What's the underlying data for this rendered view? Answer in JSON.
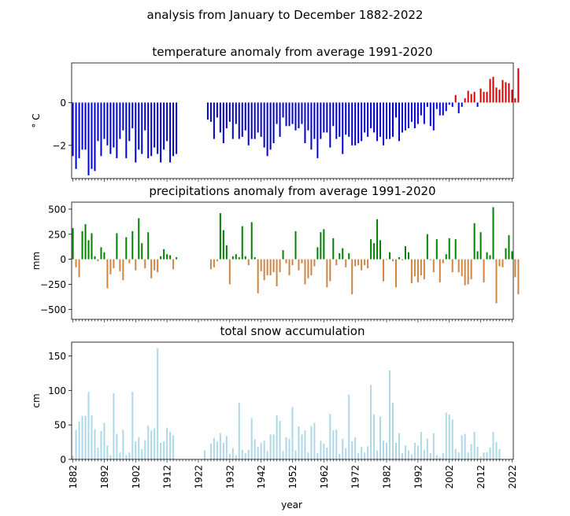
{
  "suptitle": "analysis from January to December 1882-2022",
  "xlabel": "year",
  "x_tick_labels": [
    "1882",
    "1892",
    "1902",
    "1912",
    "1922",
    "1932",
    "1942",
    "1952",
    "1962",
    "1972",
    "1982",
    "1992",
    "2002",
    "2012",
    "2022"
  ],
  "chart_data": [
    {
      "type": "bar",
      "title": "temperature anomaly from average 1991-2020",
      "xlabel": "",
      "ylabel": "° C",
      "ylim": [
        -3.55,
        1.85
      ],
      "yticks": [
        -2,
        0
      ],
      "ytick_labels": [
        "−2",
        "0"
      ],
      "xlim": [
        1881.6,
        2022.4
      ],
      "x_start": 1882,
      "colors": {
        "negative": "#0000cd",
        "positive": "#cc0000"
      },
      "values": [
        -2.5,
        -3.1,
        -2.6,
        -2.2,
        -2.2,
        -3.4,
        -3.1,
        -3.2,
        -1.8,
        -2.5,
        -1.7,
        -2.0,
        -2.4,
        -2.1,
        -2.6,
        -1.7,
        -1.3,
        -2.6,
        -1.8,
        -1.2,
        -2.8,
        -2.2,
        -2.4,
        -1.3,
        -2.6,
        -2.5,
        -2.1,
        -2.4,
        -2.8,
        -2.2,
        -1.8,
        -2.8,
        -2.5,
        -2.4,
        null,
        null,
        null,
        null,
        null,
        null,
        null,
        null,
        null,
        -0.8,
        -0.9,
        -1.7,
        -0.7,
        -1.4,
        -1.9,
        -1.2,
        -0.9,
        -1.7,
        -1.0,
        -1.7,
        -1.6,
        -1.3,
        -2.0,
        -1.7,
        -1.7,
        -1.4,
        -1.6,
        -2.1,
        -2.5,
        -2.2,
        -1.9,
        -1.0,
        -1.6,
        -0.7,
        -1.1,
        -1.1,
        -1.0,
        -1.3,
        -1.2,
        -1.0,
        -1.9,
        -1.3,
        -2.2,
        -1.7,
        -2.6,
        -1.7,
        -1.4,
        -1.4,
        -2.1,
        -1.1,
        -1.7,
        -1.6,
        -2.4,
        -1.5,
        -1.6,
        -2.0,
        -2.0,
        -1.9,
        -1.8,
        -1.4,
        -1.6,
        -1.2,
        -1.4,
        -1.8,
        -1.6,
        -2.0,
        -1.7,
        -1.7,
        -1.6,
        -0.7,
        -1.8,
        -1.4,
        -1.3,
        -1.2,
        -0.9,
        -1.2,
        -1.0,
        -0.6,
        -1.0,
        -0.2,
        -1.1,
        -1.3,
        -0.3,
        -0.6,
        -0.6,
        -0.4,
        -0.1,
        -0.2,
        0.35,
        -0.5,
        -0.2,
        0.2,
        0.55,
        0.4,
        0.5,
        -0.2,
        0.65,
        0.5,
        0.5,
        1.1,
        1.2,
        0.7,
        0.6,
        1.05,
        0.95,
        0.9,
        0.6,
        0.2,
        1.6
      ]
    },
    {
      "type": "bar",
      "title": "precipitations anomaly from average 1991-2020",
      "xlabel": "",
      "ylabel": "mm",
      "ylim": [
        -600,
        570
      ],
      "yticks": [
        -500,
        -250,
        0,
        250,
        500
      ],
      "ytick_labels": [
        "−500",
        "−250",
        "0",
        "250",
        "500"
      ],
      "xlim": [
        1881.6,
        2022.4
      ],
      "x_start": 1882,
      "colors": {
        "negative": "#cd853f",
        "positive": "#008000"
      },
      "values": [
        310,
        -80,
        -180,
        280,
        350,
        190,
        260,
        30,
        -20,
        120,
        70,
        -290,
        -150,
        -90,
        260,
        -120,
        -210,
        220,
        -40,
        280,
        -110,
        410,
        160,
        -90,
        270,
        -190,
        -110,
        -130,
        30,
        100,
        50,
        40,
        -100,
        20,
        null,
        null,
        null,
        null,
        null,
        null,
        null,
        null,
        null,
        null,
        -100,
        -80,
        -20,
        460,
        290,
        140,
        -250,
        30,
        50,
        20,
        330,
        30,
        -60,
        370,
        20,
        -340,
        -120,
        -210,
        -160,
        -160,
        -130,
        -270,
        -130,
        90,
        -40,
        -160,
        -60,
        280,
        -110,
        -40,
        -250,
        -190,
        -160,
        -70,
        120,
        270,
        300,
        -280,
        -220,
        210,
        -60,
        60,
        110,
        -80,
        60,
        -350,
        -70,
        -60,
        -110,
        -60,
        -90,
        200,
        160,
        400,
        190,
        -220,
        0,
        70,
        -20,
        -280,
        20,
        -10,
        130,
        70,
        -240,
        -170,
        -230,
        -160,
        -200,
        250,
        -10,
        -130,
        200,
        -230,
        -40,
        50,
        210,
        -130,
        200,
        -130,
        -170,
        -260,
        -250,
        -200,
        360,
        80,
        270,
        -230,
        70,
        40,
        520,
        -440,
        -70,
        -80,
        110,
        240,
        80,
        -180,
        -350
      ]
    },
    {
      "type": "bar",
      "title": "total snow accumulation",
      "xlabel": "year",
      "ylabel": "cm",
      "ylim": [
        0,
        170
      ],
      "yticks": [
        0,
        50,
        100,
        150
      ],
      "ytick_labels": [
        "0",
        "50",
        "100",
        "150"
      ],
      "xlim": [
        1881.6,
        2022.4
      ],
      "x_start": 1882,
      "colors": {
        "bar": "#add8e6"
      },
      "values": [
        5,
        43,
        55,
        63,
        63,
        98,
        64,
        44,
        17,
        41,
        53,
        20,
        6,
        96,
        37,
        10,
        43,
        6,
        10,
        98,
        26,
        32,
        15,
        28,
        49,
        42,
        45,
        161,
        24,
        26,
        46,
        40,
        35,
        null,
        null,
        null,
        null,
        null,
        null,
        null,
        null,
        null,
        13,
        null,
        23,
        31,
        26,
        38,
        24,
        34,
        8,
        16,
        6,
        82,
        14,
        9,
        14,
        60,
        29,
        18,
        24,
        27,
        12,
        36,
        36,
        64,
        56,
        12,
        32,
        30,
        76,
        13,
        48,
        36,
        42,
        10,
        48,
        53,
        9,
        27,
        23,
        17,
        66,
        42,
        43,
        8,
        30,
        16,
        94,
        26,
        32,
        9,
        18,
        10,
        19,
        108,
        65,
        13,
        62,
        27,
        24,
        129,
        82,
        24,
        38,
        9,
        20,
        13,
        7,
        24,
        20,
        40,
        14,
        30,
        9,
        38,
        6,
        3,
        9,
        68,
        65,
        58,
        15,
        10,
        35,
        37,
        10,
        22,
        40,
        18,
        4,
        10,
        10,
        17,
        40,
        25,
        15
      ]
    }
  ]
}
